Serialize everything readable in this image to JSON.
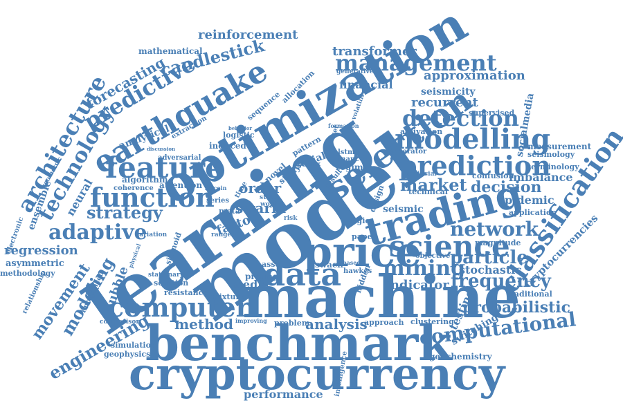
{
  "color": "#4a7fb5",
  "words": {
    "learning": "learning",
    "model": "model",
    "machine": "machine",
    "benchmark": "benchmark",
    "cryptocurrency": "cryptocurrency",
    "optimization": "optimization",
    "price": "price",
    "trading": "trading",
    "data": "data",
    "selection": "selection",
    "earthquake": "earthquake",
    "feature": "feature",
    "function": "function",
    "computer": "computer",
    "science": "science",
    "modelling": "modelling",
    "prediction": "prediction",
    "detection": "detection",
    "classification": "classification",
    "management": "management",
    "predictive": "predictive",
    "mining": "mining",
    "computational": "computational",
    "frequency": "frequency",
    "adaptive": "adaptive",
    "network": "network",
    "particle": "particle",
    "architecture": "architecture",
    "technology": "technology",
    "strategy": "strategy",
    "analysis": "analysis",
    "method": "method",
    "market": "market",
    "decision": "decision",
    "probabilistic": "probabilistic",
    "engineering": "engineering",
    "movement": "movement",
    "modeling": "modeling",
    "regression": "regression",
    "cryptocurrencies": "cryptocurrencies",
    "forecasting": "forecasting",
    "candlestick": "candlestick",
    "reinforcement": "reinforcement",
    "transformer": "transformer",
    "approximation": "approximation",
    "recurrent": "recurrent",
    "financial": "financial",
    "seismicity": "seismicity",
    "socialmedia": "socialmedia",
    "swarm": "swarm",
    "order": "order",
    "factor": "factor",
    "indicator": "indicator",
    "media": "media",
    "epidemic": "epidemic",
    "imbalance": "imbalance",
    "stochastic": "stochastic",
    "testing": "testing",
    "switching": "switching",
    "performance": "performance",
    "intelligence": "intelligence",
    "geochemistry": "geochemistry",
    "mathematical": "mathematical",
    "analytical": "analytical",
    "bubble": "bubble",
    "ensemble": "ensemble",
    "neural": "neural",
    "asymmetric": "asymmetric",
    "methodology": "methodology",
    "algorithm": "algorithm",
    "attention": "attention",
    "resistance": "resistance",
    "solution": "solution",
    "simulation": "simulation",
    "geophysics": "geophysics",
    "measurement": "measurement",
    "seismology": "seismology",
    "terminology": "terminology",
    "supervised": "supervised",
    "application": "application",
    "magnitude": "magnitude",
    "traditional": "traditional",
    "confusion": "confusion",
    "activation": "activation",
    "technical": "technical",
    "seismic": "seismic",
    "clustering": "clustering",
    "approach": "approach",
    "problem": "problem",
    "regime": "regime",
    "pricing": "pricing",
    "mixture": "mixture",
    "sequence": "sequence",
    "allocation": "allocation",
    "social": "social",
    "pattern": "pattern",
    "induced": "induced",
    "logistic": "logistic",
    "coherence": "coherence",
    "relationship": "relationship",
    "imbalanced": "imbalanced",
    "electronic": "electronic",
    "extraction": "extraction",
    "adversarial": "adversarial",
    "generator": "generator",
    "asset": "asset",
    "swach": "swach",
    "hidden": "hidden",
    "objective": "objective",
    "finance": "finance",
    "lstms": "lstms",
    "hawkes": "hawkes",
    "comparison": "comparison",
    "geometric": "geometric",
    "stationary": "stationary",
    "variation": "variation",
    "sigmoid": "sigmoid",
    "design": "design",
    "novel": "novel",
    "study": "study",
    "volatility": "volatility",
    "generative": "generative",
    "logic": "logic",
    "paper": "paper",
    "artificial": "artificial",
    "range": "range",
    "series": "series",
    "time": "time",
    "discussion": "discussion",
    "behavior": "behavior",
    "dataset": "dataset",
    "matrix": "matrix",
    "state": "state",
    "work": "work",
    "result": "result",
    "formation": "formation",
    "bitcoin": "bitcoin",
    "risk": "risk",
    "improving": "improving",
    "physical": "physical",
    "meta": "meta",
    "based": "based"
  }
}
